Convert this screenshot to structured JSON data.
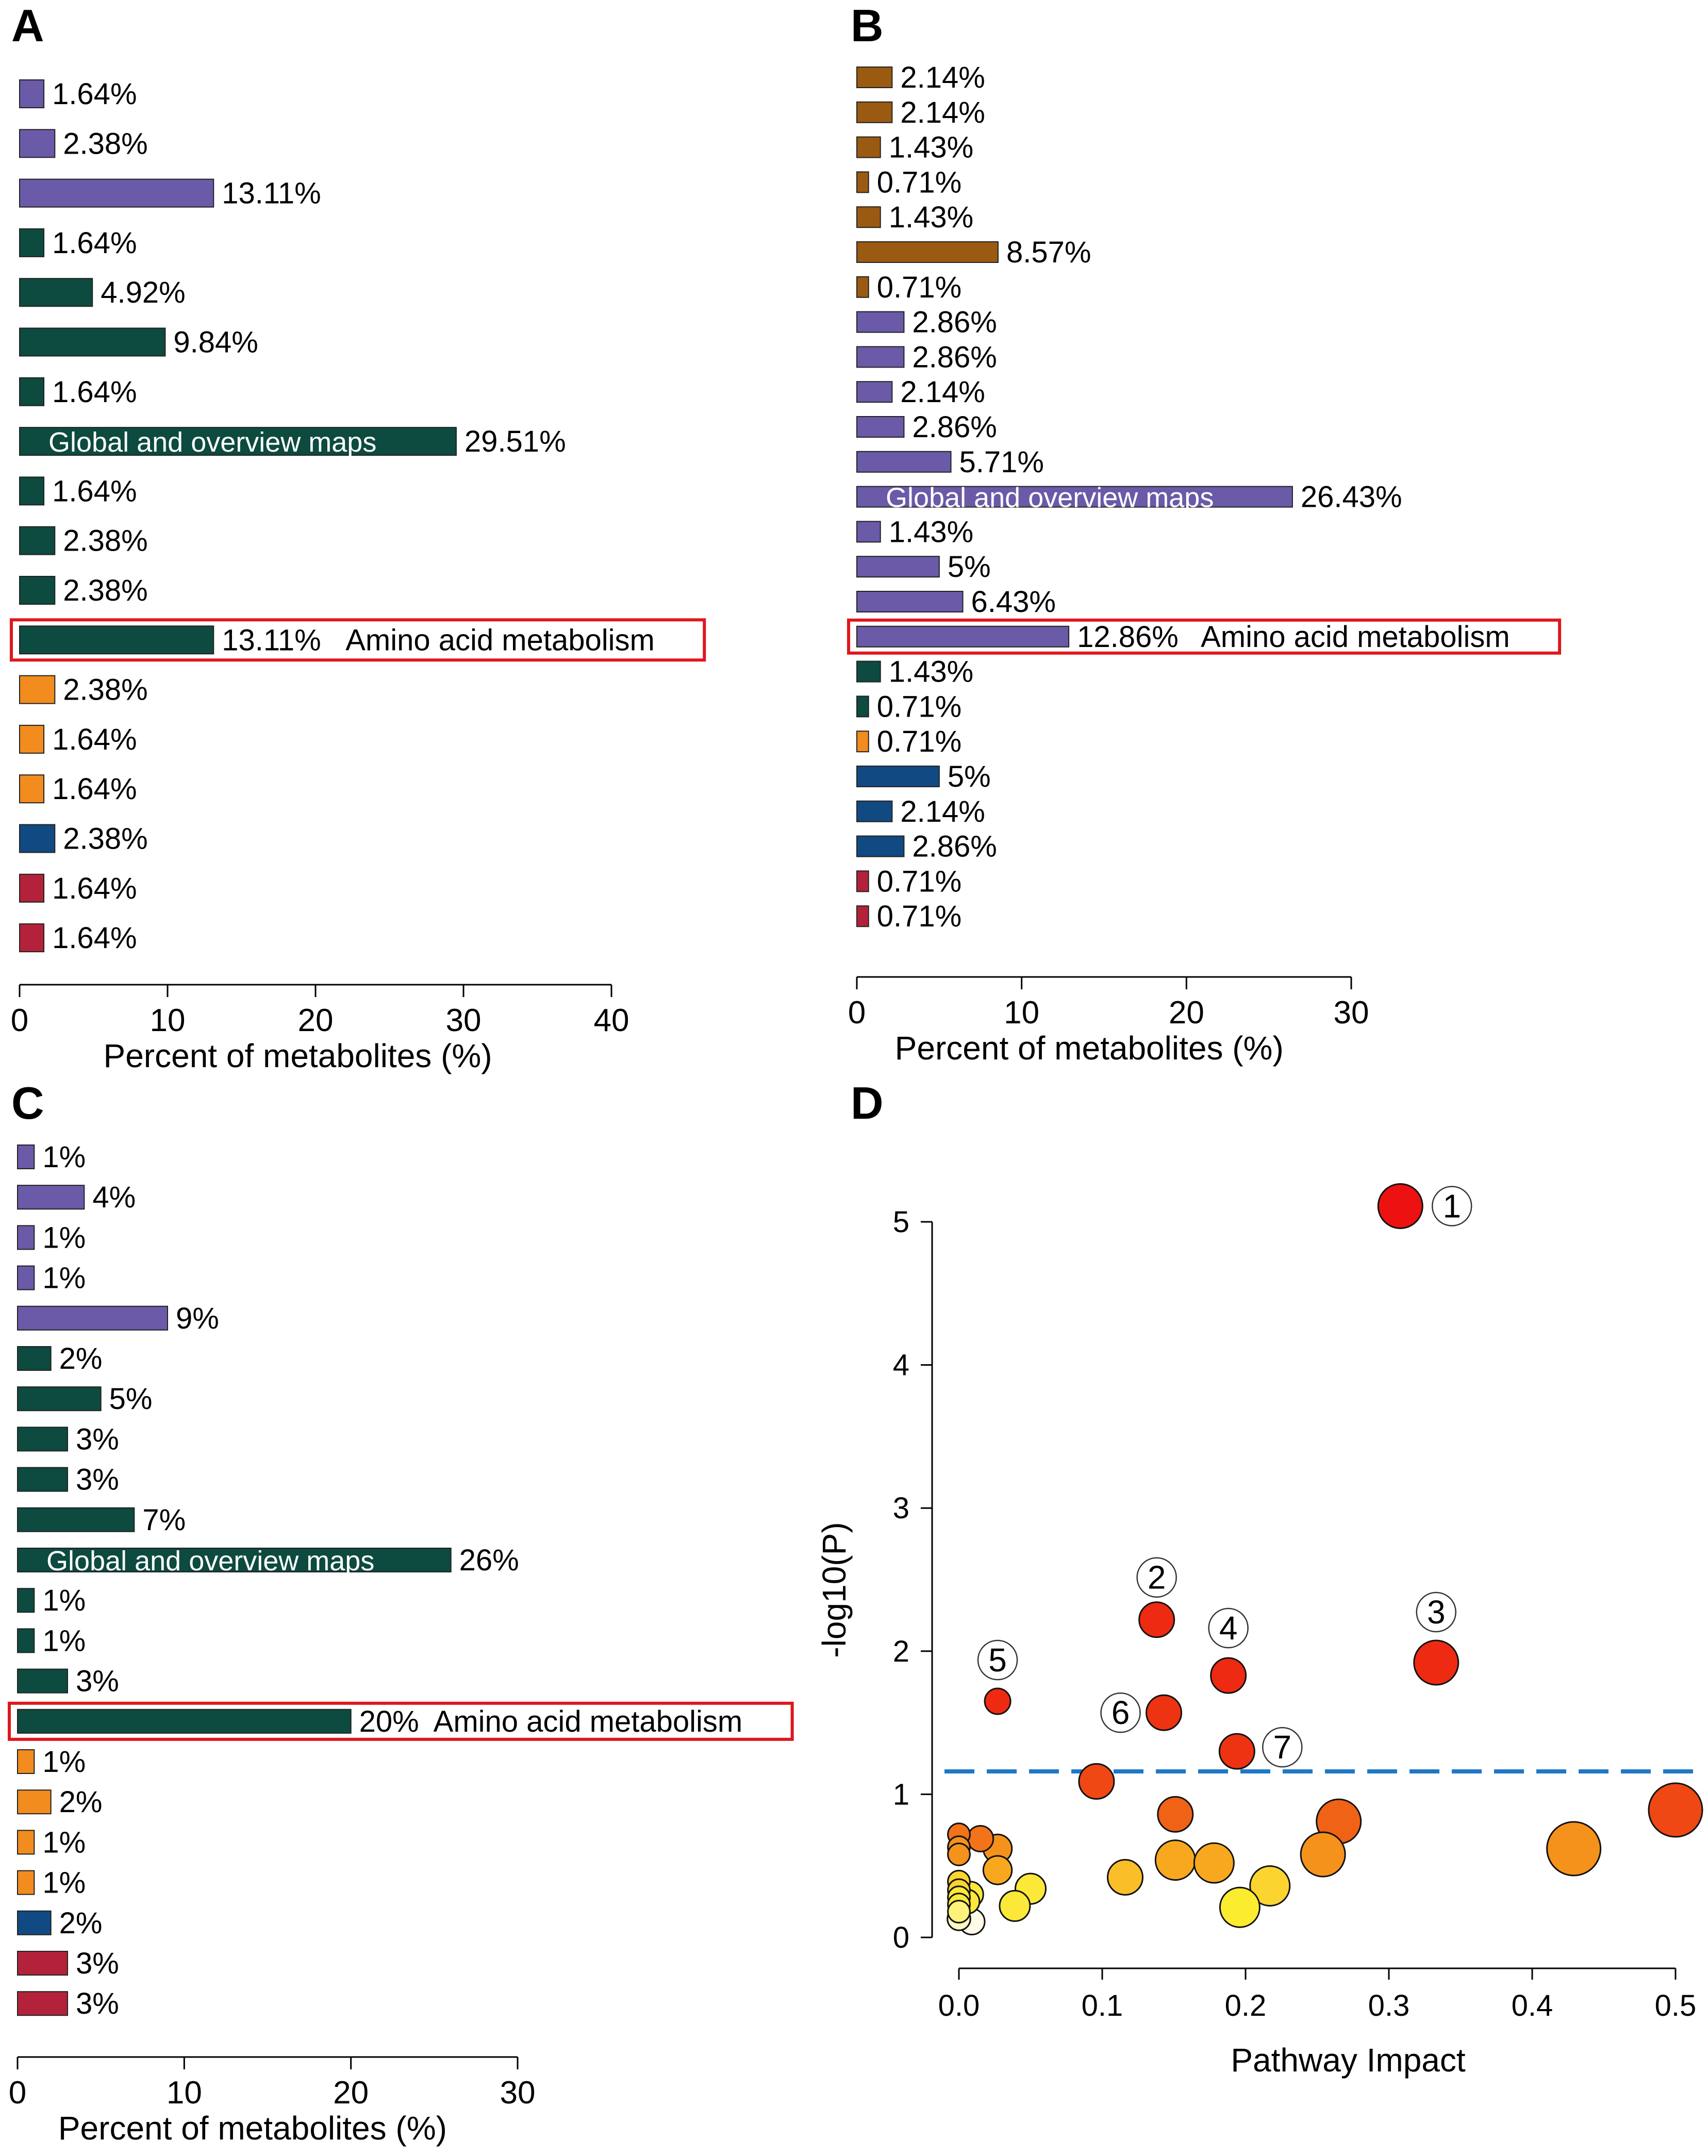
{
  "chart_data": [
    {
      "panel": "A",
      "type": "bar",
      "orientation": "horizontal",
      "xlabel": "Percent of metabolites (%)",
      "xlim": [
        0,
        40
      ],
      "xticks": [
        0,
        10,
        20,
        30,
        40
      ],
      "bars": [
        {
          "value": 1.64,
          "label": "1.64%",
          "color": "#6a5aa8"
        },
        {
          "value": 2.38,
          "label": "2.38%",
          "color": "#6a5aa8"
        },
        {
          "value": 13.11,
          "label": "13.11%",
          "color": "#6a5aa8"
        },
        {
          "value": 1.64,
          "label": "1.64%",
          "color": "#0d4a3f"
        },
        {
          "value": 4.92,
          "label": "4.92%",
          "color": "#0d4a3f"
        },
        {
          "value": 9.84,
          "label": "9.84%",
          "color": "#0d4a3f"
        },
        {
          "value": 1.64,
          "label": "1.64%",
          "color": "#0d4a3f"
        },
        {
          "value": 29.51,
          "label": "29.51%",
          "color": "#0d4a3f",
          "inside": "Global and overview maps"
        },
        {
          "value": 1.64,
          "label": "1.64%",
          "color": "#0d4a3f"
        },
        {
          "value": 2.38,
          "label": "2.38%",
          "color": "#0d4a3f"
        },
        {
          "value": 2.38,
          "label": "2.38%",
          "color": "#0d4a3f"
        },
        {
          "value": 13.11,
          "label": "13.11%",
          "color": "#0d4a3f",
          "highlight": "Amino acid metabolism"
        },
        {
          "value": 2.38,
          "label": "2.38%",
          "color": "#f28c1e"
        },
        {
          "value": 1.64,
          "label": "1.64%",
          "color": "#f28c1e"
        },
        {
          "value": 1.64,
          "label": "1.64%",
          "color": "#f28c1e"
        },
        {
          "value": 2.38,
          "label": "2.38%",
          "color": "#114a82"
        },
        {
          "value": 1.64,
          "label": "1.64%",
          "color": "#b3223a"
        },
        {
          "value": 1.64,
          "label": "1.64%",
          "color": "#b3223a"
        }
      ]
    },
    {
      "panel": "B",
      "type": "bar",
      "orientation": "horizontal",
      "xlabel": "Percent of metabolites (%)",
      "xlim": [
        0,
        30
      ],
      "xticks": [
        0,
        10,
        20,
        30
      ],
      "bars": [
        {
          "value": 2.14,
          "label": "2.14%",
          "color": "#9a5a12"
        },
        {
          "value": 2.14,
          "label": "2.14%",
          "color": "#9a5a12"
        },
        {
          "value": 1.43,
          "label": "1.43%",
          "color": "#9a5a12"
        },
        {
          "value": 0.71,
          "label": "0.71%",
          "color": "#9a5a12"
        },
        {
          "value": 1.43,
          "label": "1.43%",
          "color": "#9a5a12"
        },
        {
          "value": 8.57,
          "label": "8.57%",
          "color": "#9a5a12"
        },
        {
          "value": 0.71,
          "label": "0.71%",
          "color": "#9a5a12"
        },
        {
          "value": 2.86,
          "label": "2.86%",
          "color": "#6a5aa8"
        },
        {
          "value": 2.86,
          "label": "2.86%",
          "color": "#6a5aa8"
        },
        {
          "value": 2.14,
          "label": "2.14%",
          "color": "#6a5aa8"
        },
        {
          "value": 2.86,
          "label": "2.86%",
          "color": "#6a5aa8"
        },
        {
          "value": 5.71,
          "label": "5.71%",
          "color": "#6a5aa8"
        },
        {
          "value": 26.43,
          "label": "26.43%",
          "color": "#6a5aa8",
          "inside": "Global and overview maps"
        },
        {
          "value": 1.43,
          "label": "1.43%",
          "color": "#6a5aa8"
        },
        {
          "value": 5,
          "label": "5%",
          "color": "#6a5aa8"
        },
        {
          "value": 6.43,
          "label": "6.43%",
          "color": "#6a5aa8"
        },
        {
          "value": 12.86,
          "label": "12.86%",
          "color": "#6a5aa8",
          "highlight": "Amino acid metabolism"
        },
        {
          "value": 1.43,
          "label": "1.43%",
          "color": "#0d4a3f"
        },
        {
          "value": 0.71,
          "label": "0.71%",
          "color": "#0d4a3f"
        },
        {
          "value": 0.71,
          "label": "0.71%",
          "color": "#f28c1e"
        },
        {
          "value": 5,
          "label": "5%",
          "color": "#114a82"
        },
        {
          "value": 2.14,
          "label": "2.14%",
          "color": "#114a82"
        },
        {
          "value": 2.86,
          "label": "2.86%",
          "color": "#114a82"
        },
        {
          "value": 0.71,
          "label": "0.71%",
          "color": "#b3223a"
        },
        {
          "value": 0.71,
          "label": "0.71%",
          "color": "#b3223a"
        }
      ]
    },
    {
      "panel": "C",
      "type": "bar",
      "orientation": "horizontal",
      "xlabel": "Percent of metabolites (%)",
      "xlim": [
        0,
        30
      ],
      "xticks": [
        0,
        10,
        20,
        30
      ],
      "bars": [
        {
          "value": 1,
          "label": "1%",
          "color": "#6a5aa8"
        },
        {
          "value": 4,
          "label": "4%",
          "color": "#6a5aa8"
        },
        {
          "value": 1,
          "label": "1%",
          "color": "#6a5aa8"
        },
        {
          "value": 1,
          "label": "1%",
          "color": "#6a5aa8"
        },
        {
          "value": 9,
          "label": "9%",
          "color": "#6a5aa8"
        },
        {
          "value": 2,
          "label": "2%",
          "color": "#0d4a3f"
        },
        {
          "value": 5,
          "label": "5%",
          "color": "#0d4a3f"
        },
        {
          "value": 3,
          "label": "3%",
          "color": "#0d4a3f"
        },
        {
          "value": 3,
          "label": "3%",
          "color": "#0d4a3f"
        },
        {
          "value": 7,
          "label": "7%",
          "color": "#0d4a3f"
        },
        {
          "value": 26,
          "label": "26%",
          "color": "#0d4a3f",
          "inside": "Global and overview maps"
        },
        {
          "value": 1,
          "label": "1%",
          "color": "#0d4a3f"
        },
        {
          "value": 1,
          "label": "1%",
          "color": "#0d4a3f"
        },
        {
          "value": 3,
          "label": "3%",
          "color": "#0d4a3f"
        },
        {
          "value": 20,
          "label": "20%",
          "color": "#0d4a3f",
          "highlight": "Amino acid metabolism"
        },
        {
          "value": 1,
          "label": "1%",
          "color": "#f28c1e"
        },
        {
          "value": 2,
          "label": "2%",
          "color": "#f28c1e"
        },
        {
          "value": 1,
          "label": "1%",
          "color": "#f28c1e"
        },
        {
          "value": 1,
          "label": "1%",
          "color": "#f28c1e"
        },
        {
          "value": 2,
          "label": "2%",
          "color": "#114a82"
        },
        {
          "value": 3,
          "label": "3%",
          "color": "#b3223a"
        },
        {
          "value": 3,
          "label": "3%",
          "color": "#b3223a"
        }
      ]
    },
    {
      "panel": "D",
      "type": "scatter",
      "xlabel": "Pathway Impact",
      "ylabel": "-log10(P)",
      "xlim": [
        0,
        0.5
      ],
      "ylim": [
        0,
        5
      ],
      "xticks": [
        "0.0",
        "0.1",
        "0.2",
        "0.3",
        "0.4",
        "0.5"
      ],
      "yticks": [
        "0",
        "1",
        "2",
        "3",
        "4",
        "5"
      ],
      "threshold": 1.16,
      "threshold_color": "#1f77c8",
      "points": [
        {
          "x": 0.308,
          "y": 5.11,
          "size": 3,
          "color": "#ee1111",
          "callout": "1"
        },
        {
          "x": 0.138,
          "y": 2.22,
          "size": 2,
          "color": "#ee2a12",
          "callout": "2"
        },
        {
          "x": 0.333,
          "y": 1.92,
          "size": 3,
          "color": "#ee2a12",
          "callout": "3"
        },
        {
          "x": 0.188,
          "y": 1.83,
          "size": 2,
          "color": "#ee2a12",
          "callout": "4"
        },
        {
          "x": 0.027,
          "y": 1.65,
          "size": 1,
          "color": "#ee2a12",
          "callout": "5"
        },
        {
          "x": 0.143,
          "y": 1.57,
          "size": 2,
          "color": "#ee3312",
          "callout": "6"
        },
        {
          "x": 0.194,
          "y": 1.3,
          "size": 2,
          "color": "#ee3312",
          "callout": "7"
        },
        {
          "x": 0.096,
          "y": 1.09,
          "size": 2,
          "color": "#ef4814"
        },
        {
          "x": 0.5,
          "y": 0.89,
          "size": 4,
          "color": "#ef4814"
        },
        {
          "x": 0.151,
          "y": 0.86,
          "size": 2,
          "color": "#f06216"
        },
        {
          "x": 0.265,
          "y": 0.81,
          "size": 3,
          "color": "#f06216"
        },
        {
          "x": 0.429,
          "y": 0.62,
          "size": 4,
          "color": "#f5921c"
        },
        {
          "x": 0.254,
          "y": 0.58,
          "size": 3,
          "color": "#f5921c"
        },
        {
          "x": 0.151,
          "y": 0.54,
          "size": 2.5,
          "color": "#f7a81e"
        },
        {
          "x": 0.178,
          "y": 0.52,
          "size": 2.5,
          "color": "#f7a81e"
        },
        {
          "x": 0.116,
          "y": 0.42,
          "size": 2,
          "color": "#f9be28"
        },
        {
          "x": 0.217,
          "y": 0.36,
          "size": 2.5,
          "color": "#fbd430"
        },
        {
          "x": 0.196,
          "y": 0.21,
          "size": 2.5,
          "color": "#fcec30"
        },
        {
          "x": 0.05,
          "y": 0.34,
          "size": 1.5,
          "color": "#fce838"
        },
        {
          "x": 0.039,
          "y": 0.22,
          "size": 1.5,
          "color": "#fce838"
        },
        {
          "x": 0.015,
          "y": 0.69,
          "size": 1,
          "color": "#f3731a"
        },
        {
          "x": 0.027,
          "y": 0.62,
          "size": 1.3,
          "color": "#f5921c"
        },
        {
          "x": 0.027,
          "y": 0.47,
          "size": 1.3,
          "color": "#f7a81e"
        },
        {
          "x": 0.0,
          "y": 0.72,
          "size": 0.6,
          "color": "#f3731a"
        },
        {
          "x": 0.0,
          "y": 0.63,
          "size": 0.6,
          "color": "#f5921c"
        },
        {
          "x": 0.0,
          "y": 0.58,
          "size": 0.6,
          "color": "#f5921c"
        },
        {
          "x": 0.0,
          "y": 0.39,
          "size": 0.6,
          "color": "#fbd430"
        },
        {
          "x": 0.0,
          "y": 0.33,
          "size": 0.6,
          "color": "#fbd430"
        },
        {
          "x": 0.0,
          "y": 0.28,
          "size": 0.6,
          "color": "#fce838"
        },
        {
          "x": 0.0,
          "y": 0.23,
          "size": 0.6,
          "color": "#fce838"
        },
        {
          "x": 0.0,
          "y": 0.18,
          "size": 0.6,
          "color": "#fdf27a"
        },
        {
          "x": 0.006,
          "y": 0.25,
          "size": 0.8,
          "color": "#fce838"
        },
        {
          "x": 0.008,
          "y": 0.3,
          "size": 1,
          "color": "#fce838"
        },
        {
          "x": 0.0,
          "y": 0.13,
          "size": 0.7,
          "color": "#fdf7c8"
        },
        {
          "x": 0.009,
          "y": 0.11,
          "size": 1,
          "color": "#fffbe8"
        }
      ]
    }
  ],
  "panels": [
    "A",
    "B",
    "C",
    "D"
  ]
}
